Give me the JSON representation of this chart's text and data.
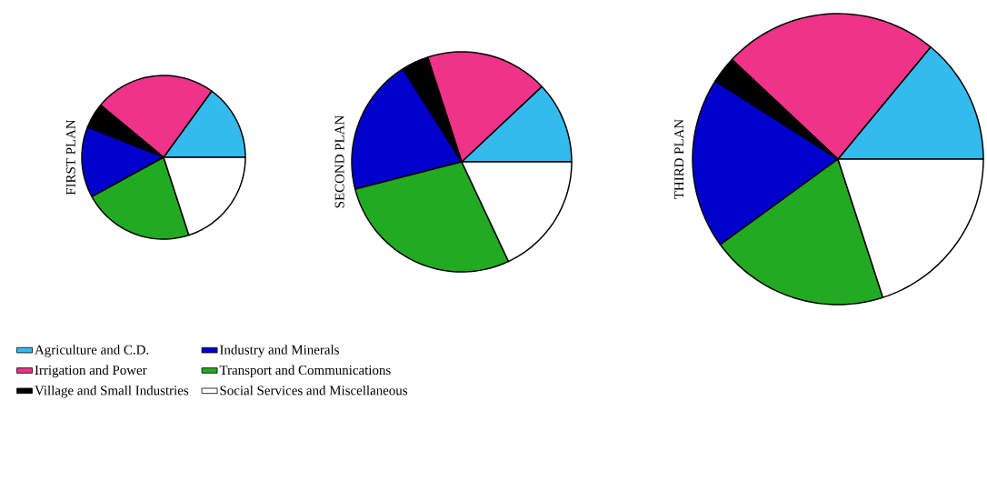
{
  "chart_data": [
    {
      "type": "pie",
      "title": "FIRST PLAN",
      "categories": [
        "Agriculture and C.D.",
        "Irrigation and Power",
        "Village and Small Industries",
        "Industry and Minerals",
        "Transport and Communications",
        "Social Services and Miscellaneous"
      ],
      "values": [
        15,
        24,
        5,
        14,
        22,
        20
      ],
      "colors": [
        "#33bbee",
        "#ee3388",
        "#000000",
        "#0000cc",
        "#22aa22",
        "#ffffff"
      ],
      "legend": "bottom"
    },
    {
      "type": "pie",
      "title": "SECOND PLAN",
      "categories": [
        null,
        null,
        null,
        null,
        null,
        null
      ],
      "values": [
        12,
        18,
        4,
        20,
        28,
        18
      ],
      "colors": [
        "#33bbee",
        "#ee3388",
        "#000000",
        "#0000cc",
        "#22aa22",
        "#ffffff"
      ]
    },
    {
      "type": "pie",
      "title": "THIRD PLAN",
      "categories": [
        null,
        null,
        null,
        null,
        null,
        null
      ],
      "values": [
        14,
        24,
        3,
        19,
        20,
        20
      ],
      "colors": [
        "#33bbee",
        "#ee3388",
        "#000000",
        "#0000cc",
        "#22aa22",
        "#ffffff"
      ]
    }
  ]
}
